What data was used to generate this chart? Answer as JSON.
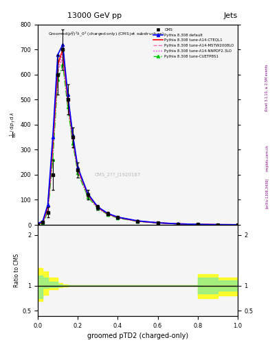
{
  "title_top": "13000 GeV pp",
  "title_right": "Jets",
  "plot_title": "Groomed$(p_T^D)^2\\lambda\\_0^2$ (charged only) (CMS jet substructure)",
  "xlabel": "groomed pTD2 (charged-only)",
  "ylabel_main": "$\\frac{1}{\\mathrm{d}N}\\,/\\,\\mathrm{d}\\lambda$",
  "ylabel_ratio": "Ratio to CMS",
  "watermark": "CMS_2??_J1920187",
  "rivet_label": "Rivet 3.1.10, ≥ 2.5M events",
  "arxiv_label": "[arXiv:1306.3436]",
  "mcplots_label": "mcplots.cern.ch",
  "x_main": [
    0.0,
    0.025,
    0.05,
    0.075,
    0.1,
    0.125,
    0.15,
    0.175,
    0.2,
    0.25,
    0.3,
    0.35,
    0.4,
    0.5,
    0.6,
    0.7,
    0.8,
    0.9,
    1.0
  ],
  "cms_y": [
    0.0,
    10,
    50,
    200,
    600,
    700,
    500,
    350,
    220,
    120,
    70,
    45,
    30,
    15,
    8,
    4,
    2,
    1,
    0.5
  ],
  "cms_yerr": [
    0.0,
    5,
    20,
    60,
    80,
    80,
    60,
    40,
    30,
    20,
    10,
    7,
    5,
    3,
    2,
    1,
    0.5,
    0.3,
    0.2
  ],
  "x_mc": [
    0.0,
    0.025,
    0.05,
    0.075,
    0.1,
    0.125,
    0.15,
    0.175,
    0.2,
    0.25,
    0.3,
    0.35,
    0.4,
    0.5,
    0.6,
    0.7,
    0.8,
    0.9,
    1.0
  ],
  "pythia_default_y": [
    5,
    15,
    80,
    350,
    680,
    720,
    520,
    360,
    230,
    125,
    72,
    46,
    31,
    16,
    8.5,
    4.2,
    2.1,
    1.0,
    0.5
  ],
  "pythia_cteql1_y": [
    4,
    12,
    70,
    320,
    640,
    700,
    505,
    350,
    225,
    122,
    70,
    44,
    30,
    15,
    8.2,
    4.0,
    2.0,
    0.9,
    0.45
  ],
  "pythia_mstw_y": [
    3,
    10,
    60,
    290,
    610,
    670,
    490,
    340,
    218,
    118,
    68,
    43,
    29,
    14.5,
    7.8,
    3.8,
    1.9,
    0.85,
    0.42
  ],
  "pythia_nnpdf_y": [
    3.5,
    11,
    65,
    305,
    625,
    685,
    498,
    345,
    220,
    120,
    69,
    43.5,
    29.5,
    14.8,
    7.9,
    3.9,
    1.95,
    0.88,
    0.43
  ],
  "pythia_cuetp_y": [
    2,
    8,
    50,
    260,
    580,
    640,
    470,
    325,
    208,
    112,
    65,
    41,
    27,
    13.5,
    7.2,
    3.5,
    1.75,
    0.8,
    0.4
  ],
  "ratio_x": [
    0.0,
    0.025,
    0.05,
    0.1,
    0.125,
    0.15,
    0.175,
    0.2,
    0.25,
    0.3,
    0.35,
    0.4,
    0.5,
    0.6,
    0.7,
    0.75,
    0.8,
    0.9,
    1.0
  ],
  "ratio_green_lo": [
    0.75,
    0.95,
    0.97,
    0.98,
    0.99,
    0.995,
    0.998,
    0.999,
    0.999,
    0.999,
    0.999,
    0.999,
    0.999,
    0.999,
    0.999,
    0.999,
    0.85,
    0.9,
    0.9
  ],
  "ratio_green_hi": [
    1.2,
    1.15,
    1.08,
    1.02,
    1.01,
    1.005,
    1.002,
    1.001,
    1.001,
    1.001,
    1.001,
    1.001,
    1.001,
    1.001,
    1.001,
    1.001,
    1.15,
    1.1,
    1.1
  ],
  "ratio_yellow_lo": [
    0.7,
    0.82,
    0.92,
    0.96,
    0.98,
    0.99,
    0.995,
    0.997,
    0.998,
    0.998,
    0.998,
    0.998,
    0.998,
    0.998,
    0.998,
    0.998,
    0.75,
    0.8,
    0.8
  ],
  "ratio_yellow_hi": [
    1.35,
    1.28,
    1.15,
    1.05,
    1.025,
    1.012,
    1.006,
    1.004,
    1.003,
    1.003,
    1.003,
    1.003,
    1.003,
    1.003,
    1.003,
    1.003,
    1.22,
    1.15,
    1.15
  ],
  "color_cms": "black",
  "color_default": "blue",
  "color_cteql1": "red",
  "color_mstw": "#ff69b4",
  "color_nnpdf": "#ff00ff",
  "color_cuetp": "#00cc00",
  "ylim_main": [
    0,
    800
  ],
  "ylim_ratio": [
    0.4,
    2.2
  ],
  "xlim": [
    0,
    1.0
  ],
  "bg_color": "#f5f5f5"
}
